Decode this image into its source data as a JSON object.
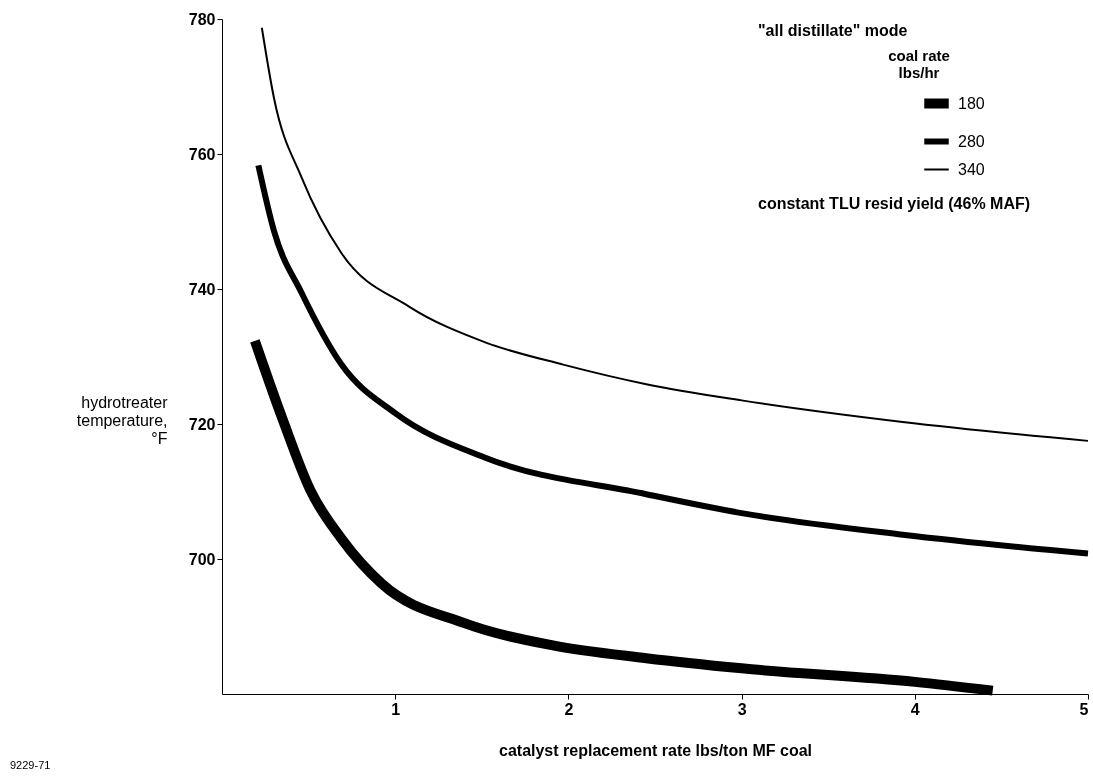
{
  "chart_data": {
    "type": "line",
    "xlabel": "catalyst replacement rate lbs/ton MF coal",
    "ylabel": "hydrotreater\ntemperature,\n°F",
    "legend_title": "coal rate\nlbs/hr",
    "xlim": [
      0,
      5
    ],
    "ylim": [
      680,
      780
    ],
    "xticks": [
      1,
      2,
      3,
      4,
      5
    ],
    "yticks": [
      700,
      720,
      740,
      760,
      780
    ],
    "grid": false,
    "legend": "top right",
    "marker": "none",
    "line_style": "solid",
    "annotations": [
      "\"all distillate\" mode",
      "constant TLU resid yield (46% MAF)",
      "9229-71"
    ],
    "series": [
      {
        "name": "180",
        "color": "#000000",
        "x": [
          0.19,
          0.35,
          0.51,
          0.69,
          0.92,
          1.4,
          1.91,
          2.45,
          3.0,
          4.0,
          4.45
        ],
        "values": [
          732.3,
          720.7,
          710.2,
          703.0,
          696.4,
          690.5,
          687.2,
          685.3,
          683.8,
          681.8,
          680.5
        ]
      },
      {
        "name": "280",
        "color": "#000000",
        "x": [
          0.21,
          0.3,
          0.46,
          0.69,
          1.0,
          1.52,
          2.45,
          3.0,
          3.93,
          5.0
        ],
        "values": [
          758.3,
          748.6,
          739.4,
          728.8,
          721.6,
          715.0,
          709.6,
          706.8,
          703.6,
          700.8
        ]
      },
      {
        "name": "340",
        "color": "#000000",
        "x": [
          0.23,
          0.3,
          0.46,
          0.69,
          1.08,
          1.52,
          1.97,
          2.45,
          3.0,
          3.93,
          5.0
        ],
        "values": [
          778.7,
          768.3,
          756.5,
          745.3,
          737.4,
          732.1,
          728.8,
          725.9,
          723.5,
          720.3,
          717.5
        ]
      }
    ]
  }
}
